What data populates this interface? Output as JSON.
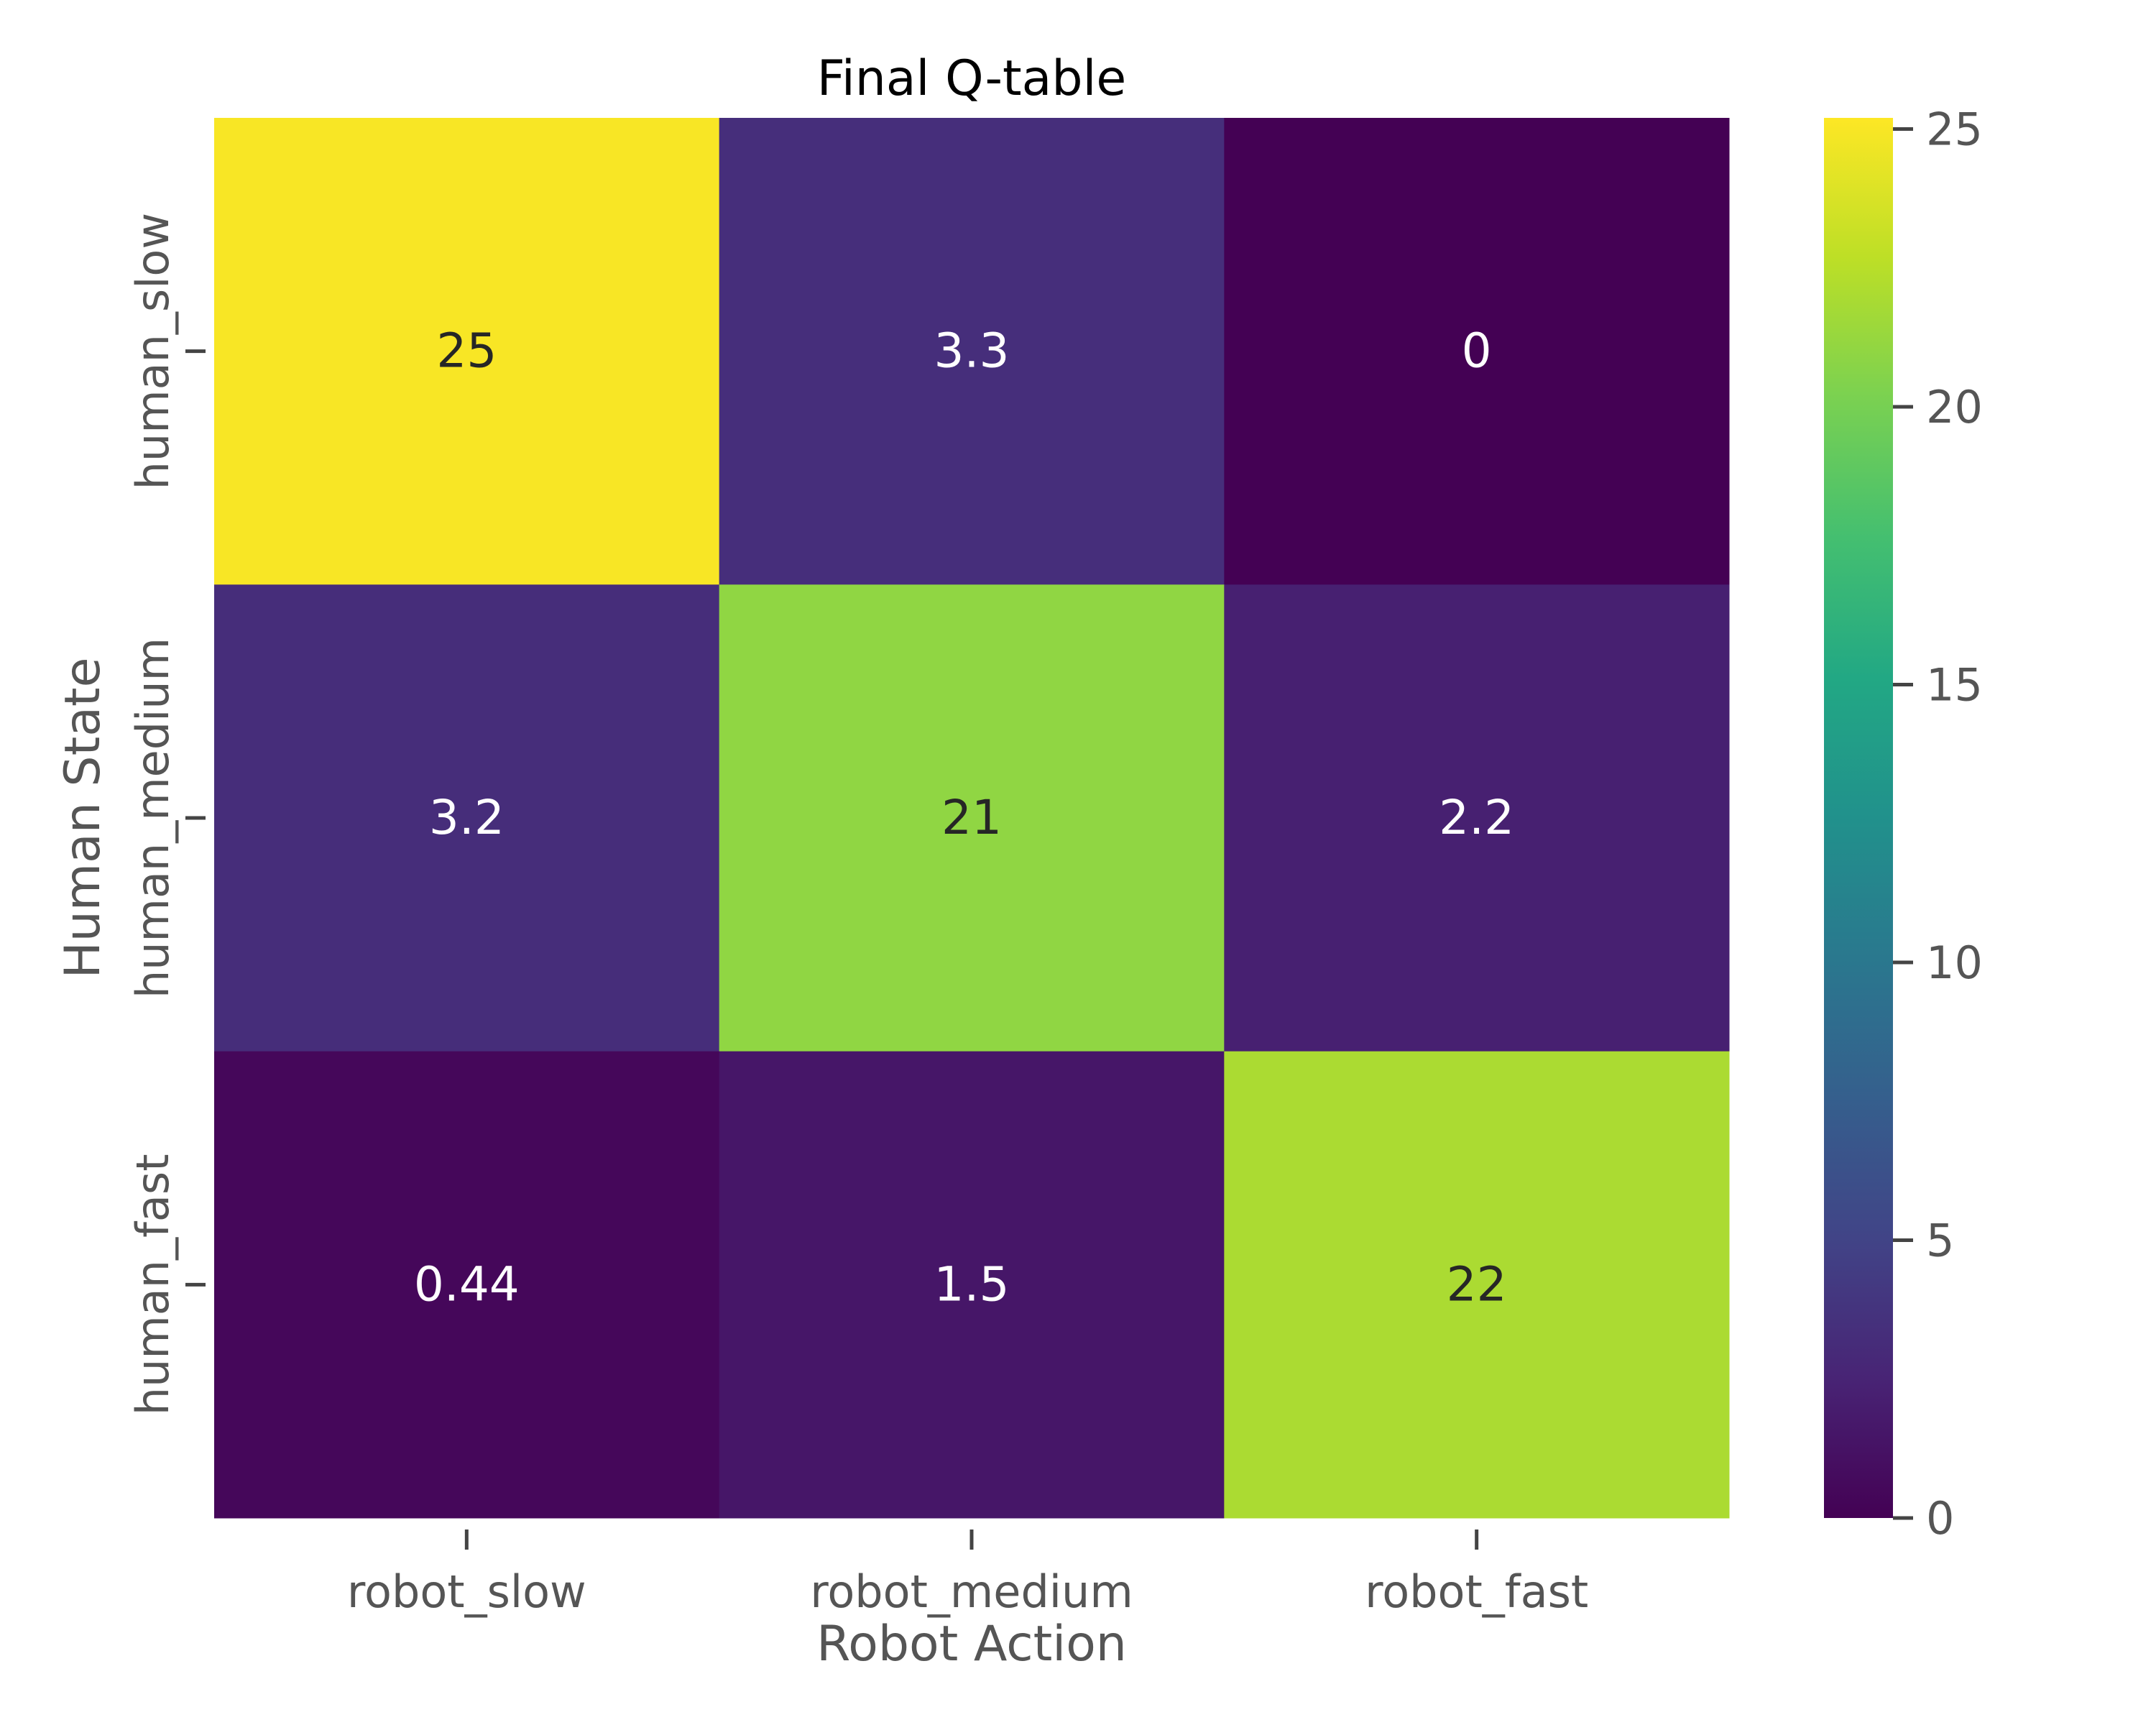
{
  "chart_data": {
    "type": "heatmap",
    "title": "Final Q-table",
    "xlabel": "Robot Action",
    "ylabel": "Human State",
    "x_categories": [
      "robot_slow",
      "robot_medium",
      "robot_fast"
    ],
    "y_categories": [
      "human_slow",
      "human_medium",
      "human_fast"
    ],
    "values": [
      [
        25,
        3.3,
        0
      ],
      [
        3.2,
        21,
        2.2
      ],
      [
        0.44,
        1.5,
        22
      ]
    ],
    "cell_labels": [
      [
        "25",
        "3.3",
        "0"
      ],
      [
        "3.2",
        "21",
        "2.2"
      ],
      [
        "0.44",
        "1.5",
        "22"
      ]
    ],
    "colormap": "viridis",
    "vmin": 0,
    "vmax": 25.2,
    "colorbar_ticks": [
      0,
      5,
      10,
      15,
      20,
      25
    ],
    "colorbar_tick_labels": [
      "0",
      "5",
      "10",
      "15",
      "20",
      "25"
    ]
  },
  "colors": {
    "dark_text": "#262626",
    "light_text": "#ffffff",
    "axis_text": "#555555",
    "title_text": "#000000"
  }
}
